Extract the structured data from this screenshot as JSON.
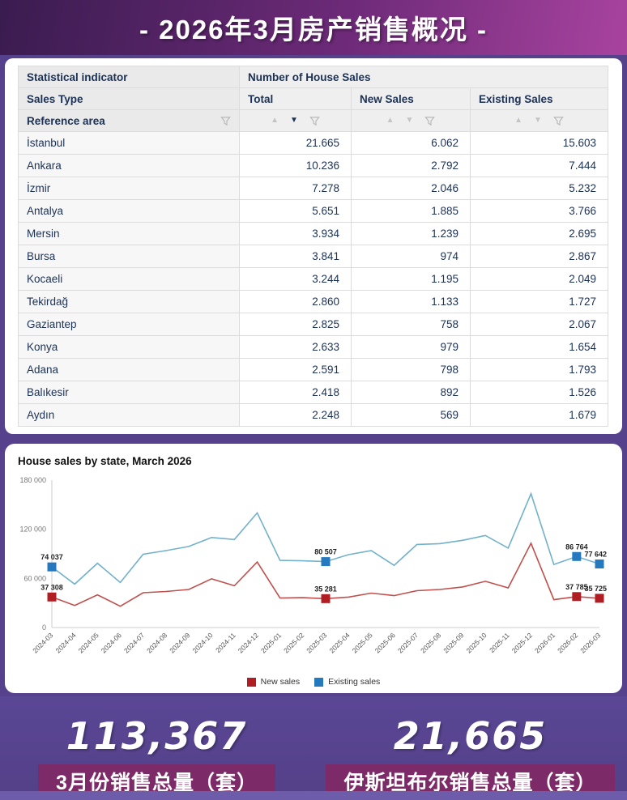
{
  "banner": {
    "title": "- 2026年3月房产销售概况 -"
  },
  "table": {
    "header": {
      "indicator_label": "Statistical indicator",
      "indicator_value": "Number of House Sales",
      "sales_type_label": "Sales Type",
      "columns": [
        "Total",
        "New Sales",
        "Existing Sales"
      ],
      "reference_label": "Reference area",
      "sort": {
        "column": "Total",
        "direction": "desc"
      }
    },
    "rows": [
      {
        "area": "İstanbul",
        "total": "21.665",
        "new": "6.062",
        "existing": "15.603"
      },
      {
        "area": "Ankara",
        "total": "10.236",
        "new": "2.792",
        "existing": "7.444"
      },
      {
        "area": "İzmir",
        "total": "7.278",
        "new": "2.046",
        "existing": "5.232"
      },
      {
        "area": "Antalya",
        "total": "5.651",
        "new": "1.885",
        "existing": "3.766"
      },
      {
        "area": "Mersin",
        "total": "3.934",
        "new": "1.239",
        "existing": "2.695"
      },
      {
        "area": "Bursa",
        "total": "3.841",
        "new": "974",
        "existing": "2.867"
      },
      {
        "area": "Kocaeli",
        "total": "3.244",
        "new": "1.195",
        "existing": "2.049"
      },
      {
        "area": "Tekirdağ",
        "total": "2.860",
        "new": "1.133",
        "existing": "1.727"
      },
      {
        "area": "Gaziantep",
        "total": "2.825",
        "new": "758",
        "existing": "2.067"
      },
      {
        "area": "Konya",
        "total": "2.633",
        "new": "979",
        "existing": "1.654"
      },
      {
        "area": "Adana",
        "total": "2.591",
        "new": "798",
        "existing": "1.793"
      },
      {
        "area": "Balıkesir",
        "total": "2.418",
        "new": "892",
        "existing": "1.526"
      },
      {
        "area": "Aydın",
        "total": "2.248",
        "new": "569",
        "existing": "1.679"
      }
    ]
  },
  "chart_data": {
    "type": "line",
    "title": "House sales by state, March 2026",
    "x": [
      "2024-03",
      "2024-04",
      "2024-05",
      "2024-06",
      "2024-07",
      "2024-08",
      "2024-09",
      "2024-10",
      "2024-11",
      "2024-12",
      "2025-01",
      "2025-02",
      "2025-03",
      "2025-04",
      "2025-05",
      "2025-06",
      "2025-07",
      "2025-08",
      "2025-09",
      "2025-10",
      "2025-11",
      "2025-12",
      "2026-01",
      "2026-02",
      "2026-03"
    ],
    "series": [
      {
        "name": "New sales",
        "line_color": "#c0504d",
        "marker_color": "#b01e23",
        "values": [
          37308,
          27000,
          40000,
          26000,
          42500,
          44000,
          46500,
          59500,
          51000,
          80000,
          36000,
          36500,
          35281,
          37200,
          42000,
          39000,
          45000,
          46500,
          49500,
          56500,
          48500,
          103000,
          34000,
          37785,
          35725
        ],
        "labeled_indices": [
          0,
          12,
          23,
          24
        ]
      },
      {
        "name": "Existing sales",
        "line_color": "#72b1cb",
        "marker_color": "#2579be",
        "values": [
          74037,
          53000,
          78500,
          55000,
          89500,
          94000,
          99000,
          110000,
          107500,
          140000,
          82000,
          81500,
          80507,
          89000,
          94000,
          76000,
          101500,
          102500,
          106500,
          112500,
          97000,
          163500,
          77000,
          86764,
          77642
        ],
        "labeled_indices": [
          0,
          12,
          23,
          24
        ]
      }
    ],
    "ylim": [
      0,
      180000
    ],
    "yticks": [
      0,
      60000,
      120000,
      180000
    ],
    "grid": false,
    "legend_position": "bottom"
  },
  "summary": {
    "left": {
      "value": "113,367",
      "label": "3月份销售总量（套）"
    },
    "right": {
      "value": "21,665",
      "label": "伊斯坦布尔销售总量（套）"
    }
  }
}
